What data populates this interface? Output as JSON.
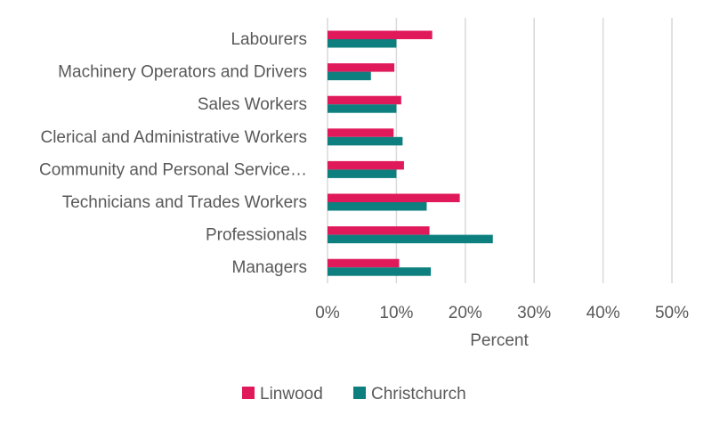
{
  "chart_data": {
    "type": "bar",
    "orientation": "horizontal",
    "categories": [
      "Labourers",
      "Machinery Operators and Drivers",
      "Sales Workers",
      "Clerical and Administrative Workers",
      "Community and Personal Service…",
      "Technicians and Trades Workers",
      "Professionals",
      "Managers"
    ],
    "series": [
      {
        "name": "Linwood",
        "color": "#e0195a",
        "values": [
          15.2,
          9.7,
          10.7,
          9.6,
          11.1,
          19.2,
          14.8,
          10.4
        ]
      },
      {
        "name": "Christchurch",
        "color": "#0e7f7f",
        "values": [
          10.0,
          6.3,
          10.0,
          10.9,
          10.0,
          14.4,
          24.0,
          15.0
        ]
      }
    ],
    "xlabel": "Percent",
    "xlim": [
      0,
      50
    ],
    "xticks": [
      "0%",
      "10%",
      "20%",
      "30%",
      "40%",
      "50%"
    ],
    "xtick_values": [
      0,
      10,
      20,
      30,
      40,
      50
    ],
    "grid": "vertical",
    "legend": "bottom"
  }
}
